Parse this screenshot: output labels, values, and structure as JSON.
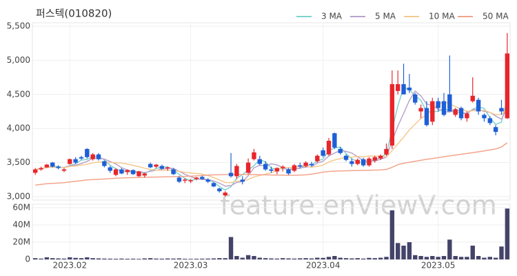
{
  "chart_data": {
    "type": "candlestick",
    "title": "퍼스텍(010820)",
    "watermark": "feature.enViewV.com",
    "categories": [
      null,
      null,
      null,
      null,
      null,
      null,
      "2023.02",
      null,
      null,
      null,
      null,
      null,
      null,
      null,
      null,
      null,
      null,
      null,
      null,
      null,
      null,
      null,
      null,
      null,
      null,
      null,
      null,
      "2023.03",
      null,
      null,
      null,
      null,
      null,
      null,
      null,
      null,
      null,
      null,
      null,
      null,
      null,
      null,
      null,
      null,
      null,
      null,
      null,
      null,
      null,
      null,
      "2023.04",
      null,
      null,
      null,
      null,
      null,
      null,
      null,
      null,
      null,
      null,
      null,
      null,
      null,
      null,
      null,
      null,
      null,
      null,
      null,
      "2023.05",
      null,
      null,
      null,
      null,
      null,
      null,
      null,
      null,
      null,
      null,
      null,
      null
    ],
    "open": [
      3350,
      3400,
      3430,
      3500,
      3440,
      3380,
      3480,
      3550,
      3580,
      3700,
      3550,
      3620,
      3520,
      3430,
      3320,
      3400,
      3360,
      3390,
      3300,
      3310,
      3480,
      3440,
      3450,
      3420,
      3400,
      3280,
      3240,
      3230,
      3260,
      3290,
      3250,
      3200,
      3120,
      3020,
      3350,
      3300,
      3250,
      3350,
      3550,
      3550,
      3480,
      3400,
      3370,
      3420,
      3400,
      3380,
      3460,
      3450,
      3480,
      3520,
      3680,
      3620,
      3930,
      3700,
      3600,
      3520,
      3480,
      3550,
      3460,
      3530,
      3560,
      3620,
      3750,
      4550,
      4650,
      4600,
      4500,
      4250,
      4300,
      4100,
      4400,
      4400,
      4500,
      4200,
      4300,
      4150,
      4400,
      4420,
      4200,
      4150,
      4020,
      4300,
      4150
    ],
    "high": [
      3420,
      3440,
      3480,
      3510,
      3460,
      3420,
      3560,
      3580,
      3600,
      3710,
      3640,
      3640,
      3530,
      3450,
      3420,
      3420,
      3400,
      3400,
      3380,
      3350,
      3500,
      3480,
      3470,
      3440,
      3420,
      3300,
      3270,
      3260,
      3290,
      3310,
      3270,
      3210,
      3130,
      3080,
      3640,
      3480,
      3300,
      3560,
      3700,
      3600,
      3520,
      3440,
      3430,
      3460,
      3420,
      3480,
      3500,
      3520,
      3510,
      3620,
      3720,
      3860,
      3940,
      3730,
      3620,
      3560,
      3560,
      3570,
      3580,
      3600,
      3620,
      3780,
      4850,
      4850,
      4950,
      4800,
      4520,
      4350,
      4400,
      4450,
      4450,
      4520,
      5070,
      4300,
      4320,
      4250,
      4750,
      4450,
      4220,
      4180,
      4050,
      4420,
      5400
    ],
    "low": [
      3320,
      3380,
      3420,
      3430,
      3400,
      3360,
      3470,
      3480,
      3540,
      3560,
      3530,
      3530,
      3430,
      3350,
      3300,
      3330,
      3320,
      3320,
      3290,
      3280,
      3420,
      3420,
      3400,
      3380,
      3320,
      3200,
      3200,
      3200,
      3240,
      3250,
      3200,
      3140,
      3060,
      3000,
      3280,
      3260,
      3180,
      3330,
      3530,
      3460,
      3380,
      3350,
      3330,
      3370,
      3320,
      3360,
      3420,
      3430,
      3440,
      3500,
      3580,
      3600,
      3700,
      3620,
      3520,
      3440,
      3460,
      3440,
      3440,
      3500,
      3540,
      3600,
      3700,
      4500,
      4500,
      4520,
      4350,
      4150,
      4030,
      4050,
      4250,
      4180,
      4250,
      4170,
      4120,
      4100,
      4380,
      4200,
      4100,
      4050,
      3900,
      4200,
      4140
    ],
    "close": [
      3400,
      3420,
      3470,
      3440,
      3420,
      3400,
      3550,
      3500,
      3560,
      3580,
      3620,
      3550,
      3450,
      3380,
      3400,
      3340,
      3390,
      3330,
      3370,
      3340,
      3430,
      3470,
      3410,
      3430,
      3330,
      3220,
      3250,
      3240,
      3280,
      3260,
      3220,
      3150,
      3080,
      3060,
      3300,
      3450,
      3220,
      3500,
      3650,
      3480,
      3400,
      3380,
      3420,
      3440,
      3340,
      3460,
      3440,
      3500,
      3460,
      3600,
      3600,
      3820,
      3720,
      3640,
      3540,
      3480,
      3540,
      3460,
      3560,
      3580,
      3600,
      3700,
      4650,
      4650,
      4500,
      4560,
      4380,
      4300,
      4050,
      4400,
      4300,
      4200,
      4250,
      4280,
      4150,
      4220,
      4480,
      4250,
      4150,
      4080,
      3950,
      4250,
      5100
    ],
    "up_color": "#e8252b",
    "down_color": "#1f5fd6",
    "series": [
      {
        "name": "3 MA",
        "color": "#7dd3cf",
        "window": 3
      },
      {
        "name": "5 MA",
        "color": "#b9a3cc",
        "window": 5
      },
      {
        "name": "10 MA",
        "color": "#f5c98e",
        "window": 10
      },
      {
        "name": "50 MA",
        "color": "#f4a48c",
        "values": [
          3170,
          3180,
          3190,
          3195,
          3200,
          3205,
          3215,
          3225,
          3235,
          3245,
          3250,
          3255,
          3260,
          3265,
          3270,
          3275,
          3278,
          3280,
          3282,
          3284,
          3286,
          3288,
          3290,
          3292,
          3294,
          3296,
          3298,
          3300,
          3305,
          3310,
          3315,
          3320,
          3322,
          3324,
          3326,
          3326,
          3325,
          3324,
          3323,
          3322,
          3320,
          3318,
          3316,
          3315,
          3314,
          3314,
          3316,
          3320,
          3330,
          3345,
          3360,
          3370,
          3375,
          3378,
          3380,
          3382,
          3384,
          3386,
          3388,
          3390,
          3392,
          3400,
          3430,
          3470,
          3490,
          3505,
          3520,
          3535,
          3548,
          3560,
          3572,
          3585,
          3598,
          3610,
          3622,
          3634,
          3646,
          3658,
          3670,
          3685,
          3700,
          3730,
          3790
        ]
      }
    ],
    "ylim": [
      2950,
      5550
    ],
    "yticks": [
      {
        "value": 3000,
        "label": "3,000"
      },
      {
        "value": 3500,
        "label": "3,500"
      },
      {
        "value": 4000,
        "label": "4,000"
      },
      {
        "value": 4500,
        "label": "4,500"
      },
      {
        "value": 5000,
        "label": "5,000"
      },
      {
        "value": 5500,
        "label": "5,500"
      }
    ],
    "volume": [
      1500000,
      1000000,
      2500000,
      1500000,
      1200000,
      1000000,
      2500000,
      1800000,
      1500000,
      2500000,
      1500000,
      1200000,
      1000000,
      900000,
      800000,
      1000000,
      800000,
      900000,
      700000,
      1200000,
      1500000,
      1000000,
      900000,
      1100000,
      1000000,
      1200000,
      800000,
      700000,
      800000,
      900000,
      1000000,
      1200000,
      1500000,
      1500000,
      26000000,
      4000000,
      2000000,
      5000000,
      4000000,
      2000000,
      1500000,
      1200000,
      1000000,
      1500000,
      1200000,
      1000000,
      1300000,
      1500000,
      1200000,
      2000000,
      1800000,
      3000000,
      4000000,
      2000000,
      1500000,
      1200000,
      1500000,
      1000000,
      1800000,
      1500000,
      2000000,
      3000000,
      57000000,
      19000000,
      16000000,
      20000000,
      5000000,
      4000000,
      3000000,
      4000000,
      3000000,
      4000000,
      23000000,
      4000000,
      3000000,
      3000000,
      16000000,
      4000000,
      2000000,
      3000000,
      2000000,
      15000000,
      59000000
    ],
    "volume_color": "#44446a",
    "y2lim": [
      0,
      64000000
    ],
    "y2ticks": [
      0,
      {
        "value": 20000000,
        "label": "20M"
      },
      {
        "value": 40000000,
        "label": "40M"
      },
      {
        "value": 60000000,
        "label": "60M"
      }
    ],
    "grid": true
  }
}
